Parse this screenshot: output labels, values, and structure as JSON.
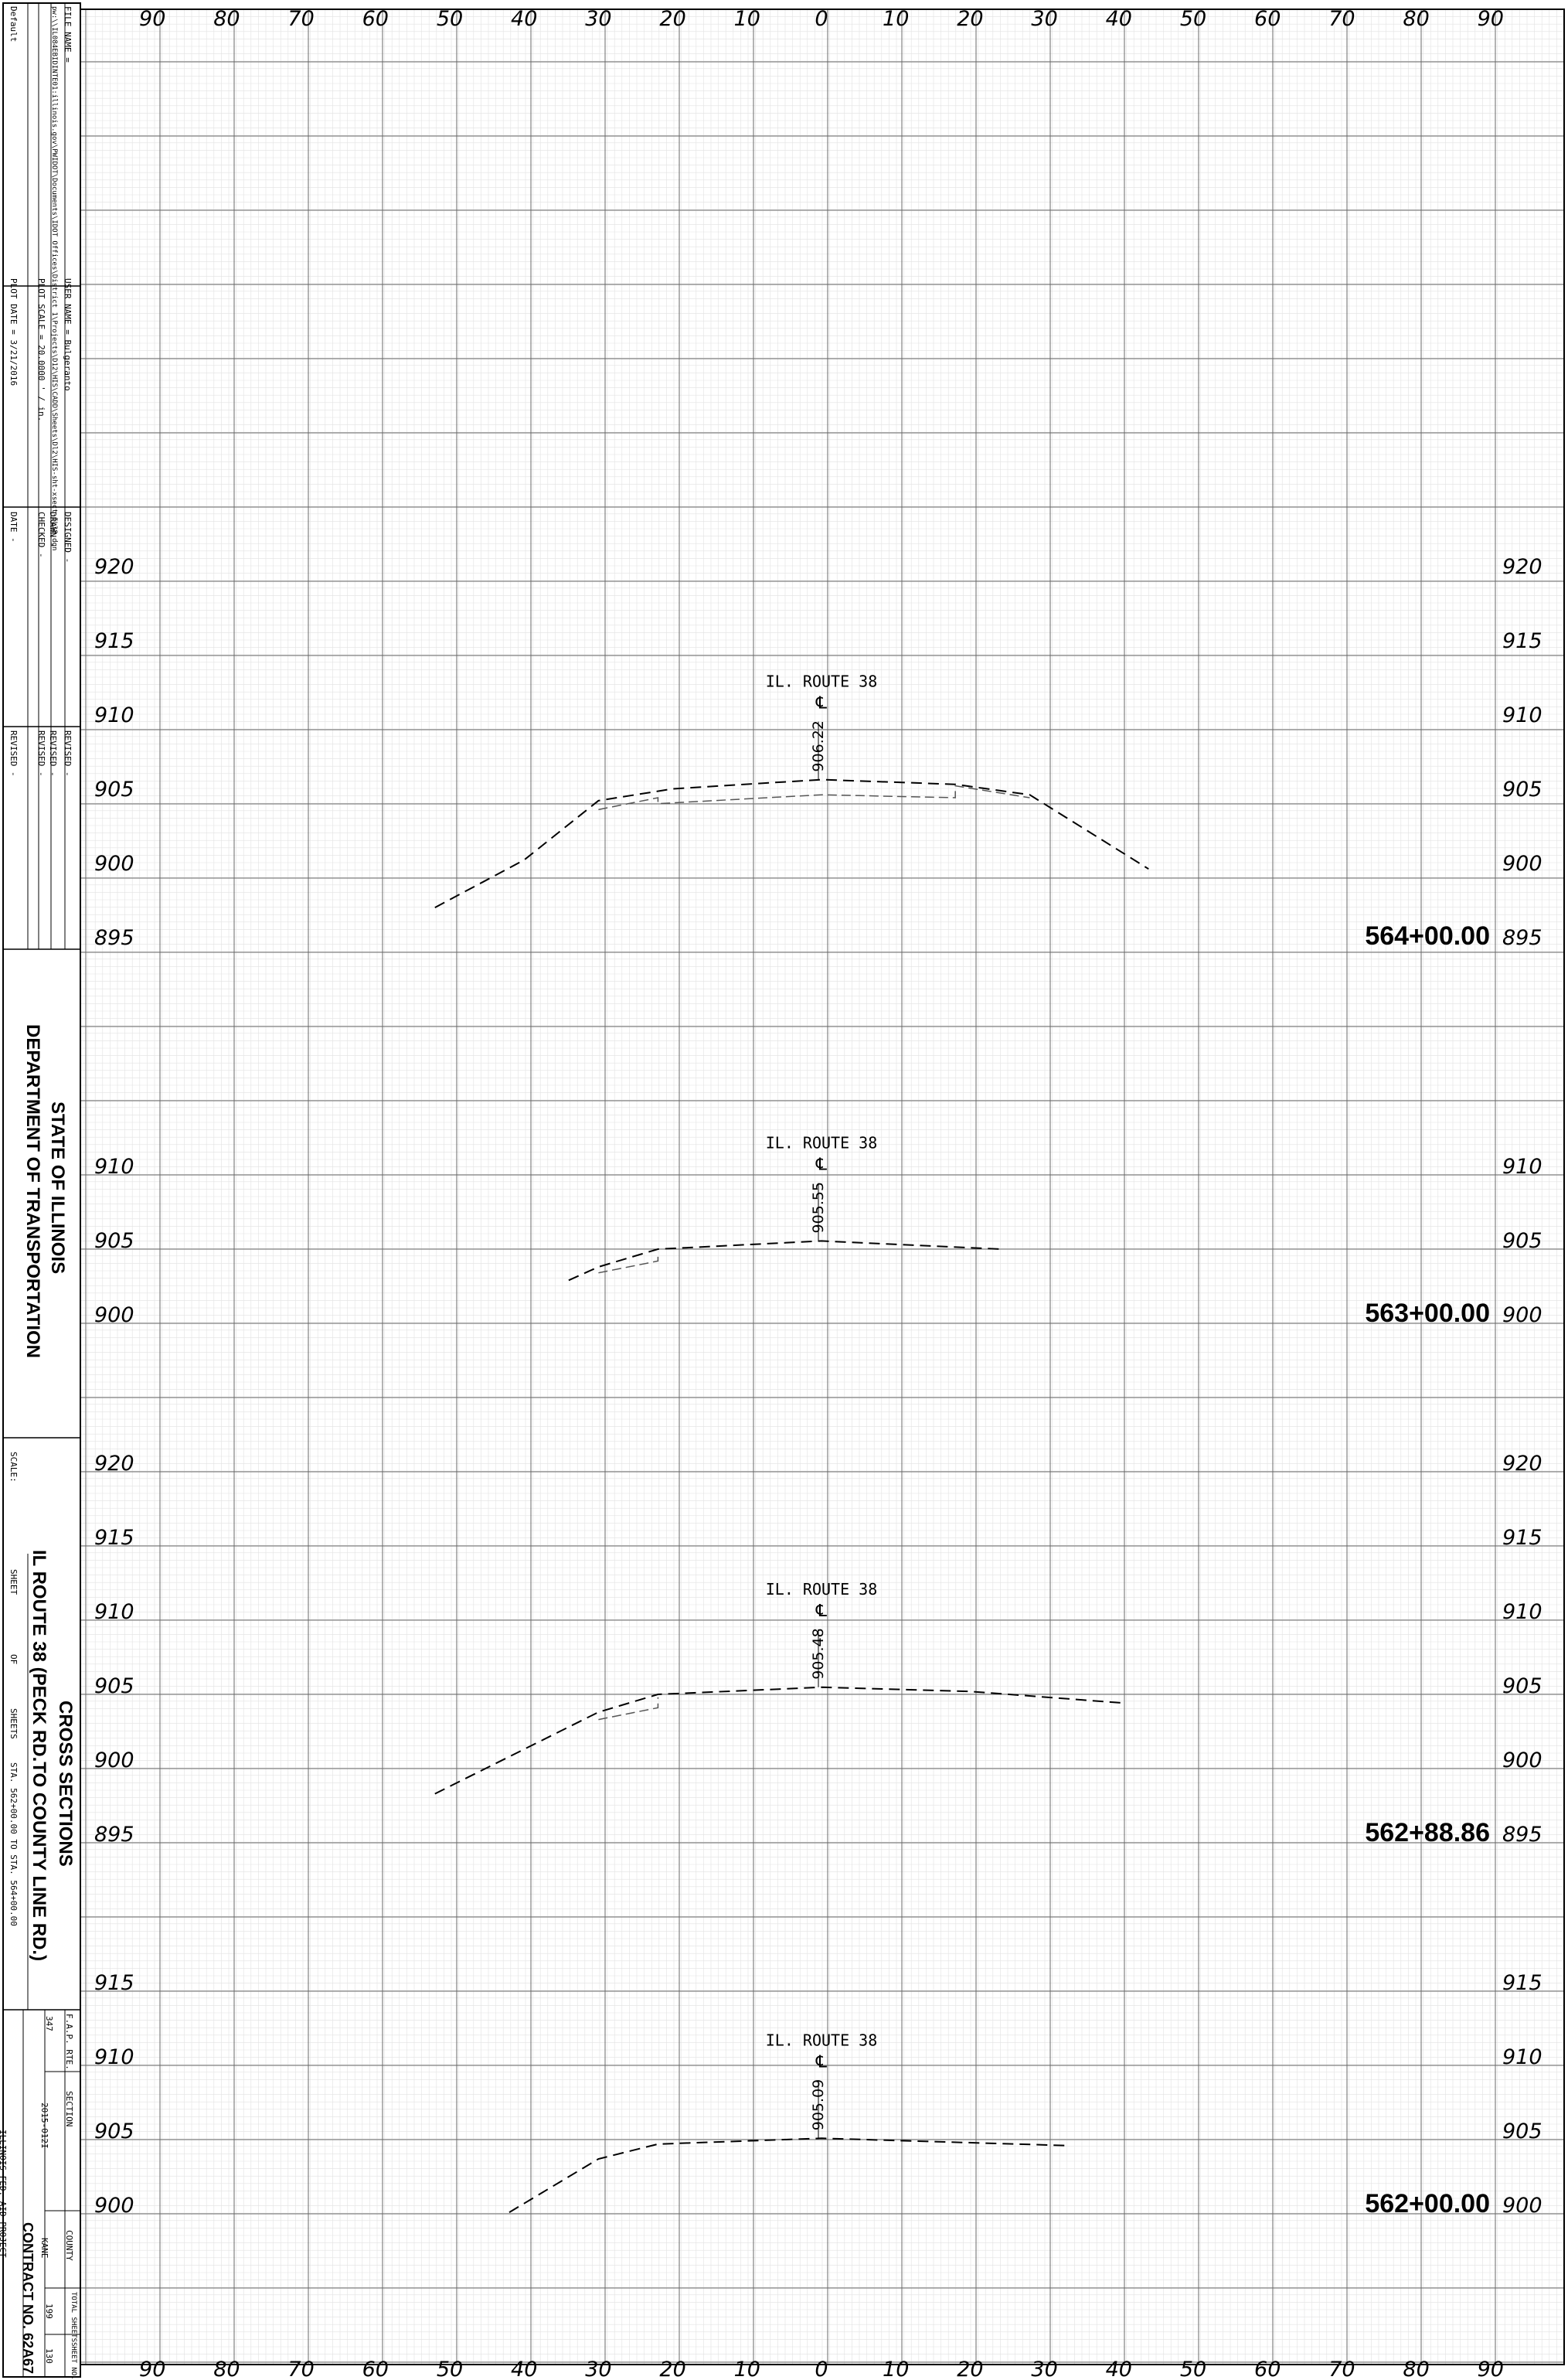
{
  "title_block": {
    "file_name": "FILE NAME =",
    "file_path": "pw:\\\\IL084EBIDINTE01:illinois.gov\\PWIDOT\\Documents\\IDOT Offices\\District 1\\Projects\\D12\\HIS\\CADD\\Sheets\\Dl2\\HIS-sht-xsect-IL38.dgn",
    "user_name": "USER NAME = Bulgeranto",
    "plot_scale": "PLOT SCALE = 20.0000 ' / in.",
    "plot_date": "PLOT DATE = 3/21/2016",
    "default": "Default",
    "designed": "DESIGNED  -",
    "drawn": "DRAWN     -",
    "checked": "CHECKED   -",
    "date": "DATE      -",
    "revised": [
      "REVISED  -",
      "REVISED  -",
      "REVISED  -",
      "REVISED  -"
    ],
    "agency_line1": "STATE OF ILLINOIS",
    "agency_line2": "DEPARTMENT OF TRANSPORTATION",
    "scale_label": "SCALE:",
    "sheet_title1": "CROSS SECTIONS",
    "sheet_title2": "IL ROUTE 38 (PECK RD.TO COUNTY LINE RD.)",
    "sheet_label": "SHEET",
    "of_label": "OF",
    "sheets_label": "SHEETS",
    "sta_range": "STA. 562+00.00   TO STA. 564+00.00",
    "fap_rte_label": "F.A.P. RTE.",
    "fap_rte": "347",
    "section_label": "SECTION",
    "section": "2015-012I",
    "county_label": "COUNTY",
    "county": "KANE",
    "total_sheets_label": "TOTAL SHEETS",
    "total_sheets": "199",
    "sheet_no_label": "SHEET NO.",
    "sheet_no": "130",
    "contract": "CONTRACT NO. 62A67",
    "fed_aid": "ILLINOIS FED. AID PROJECT"
  },
  "offset_labels": [
    "90",
    "80",
    "70",
    "60",
    "50",
    "40",
    "30",
    "20",
    "10",
    "0",
    "10",
    "20",
    "30",
    "40",
    "50",
    "60",
    "70",
    "80",
    "90"
  ],
  "sections": [
    {
      "station": "564+00.00",
      "route_label": "IL. ROUTE 38",
      "centerline_symbol": "℄",
      "cl_elevation": "906.22",
      "elevations": [
        "920",
        "915",
        "910",
        "905",
        "900",
        "895"
      ],
      "proposed_profile": [
        [
          -52,
          897.6
        ],
        [
          -40,
          900.8
        ],
        [
          -30,
          904.8
        ],
        [
          -20,
          905.6
        ],
        [
          0,
          906.22
        ],
        [
          18,
          905.9
        ],
        [
          28,
          905.2
        ],
        [
          44,
          900.2
        ]
      ],
      "existing_profile": [
        [
          -30,
          904.2
        ],
        [
          -22,
          905.0
        ],
        [
          -22,
          904.6
        ],
        [
          0,
          905.2
        ],
        [
          18,
          905.0
        ],
        [
          18,
          905.8
        ],
        [
          28,
          905.0
        ]
      ]
    },
    {
      "station": "563+00.00",
      "route_label": "IL. ROUTE 38",
      "centerline_symbol": "℄",
      "cl_elevation": "905.55",
      "elevations": [
        "910",
        "905",
        "900"
      ],
      "proposed_profile": [
        [
          -34,
          902.9
        ],
        [
          -30,
          903.8
        ],
        [
          -22,
          905.0
        ],
        [
          0,
          905.55
        ],
        [
          24,
          905.0
        ]
      ],
      "existing_profile": [
        [
          -30,
          903.4
        ],
        [
          -22,
          904.2
        ],
        [
          -22,
          904.8
        ]
      ]
    },
    {
      "station": "562+88.86",
      "route_label": "IL. ROUTE 38",
      "centerline_symbol": "℄",
      "cl_elevation": "905.48",
      "elevations": [
        "920",
        "915",
        "910",
        "905",
        "900",
        "895"
      ],
      "proposed_profile": [
        [
          -52,
          898.3
        ],
        [
          -30,
          903.8
        ],
        [
          -22,
          905.0
        ],
        [
          0,
          905.48
        ],
        [
          20,
          905.2
        ],
        [
          41,
          904.4
        ]
      ],
      "existing_profile": [
        [
          -30,
          903.3
        ],
        [
          -22,
          904.1
        ],
        [
          -22,
          904.8
        ]
      ]
    },
    {
      "station": "562+00.00",
      "route_label": "IL. ROUTE 38",
      "centerline_symbol": "℄",
      "cl_elevation": "905.09",
      "elevations": [
        "915",
        "910",
        "905",
        "900"
      ],
      "proposed_profile": [
        [
          -42,
          900.1
        ],
        [
          -30,
          903.7
        ],
        [
          -22,
          904.7
        ],
        [
          0,
          905.09
        ],
        [
          33,
          904.6
        ]
      ],
      "existing_profile": []
    }
  ]
}
